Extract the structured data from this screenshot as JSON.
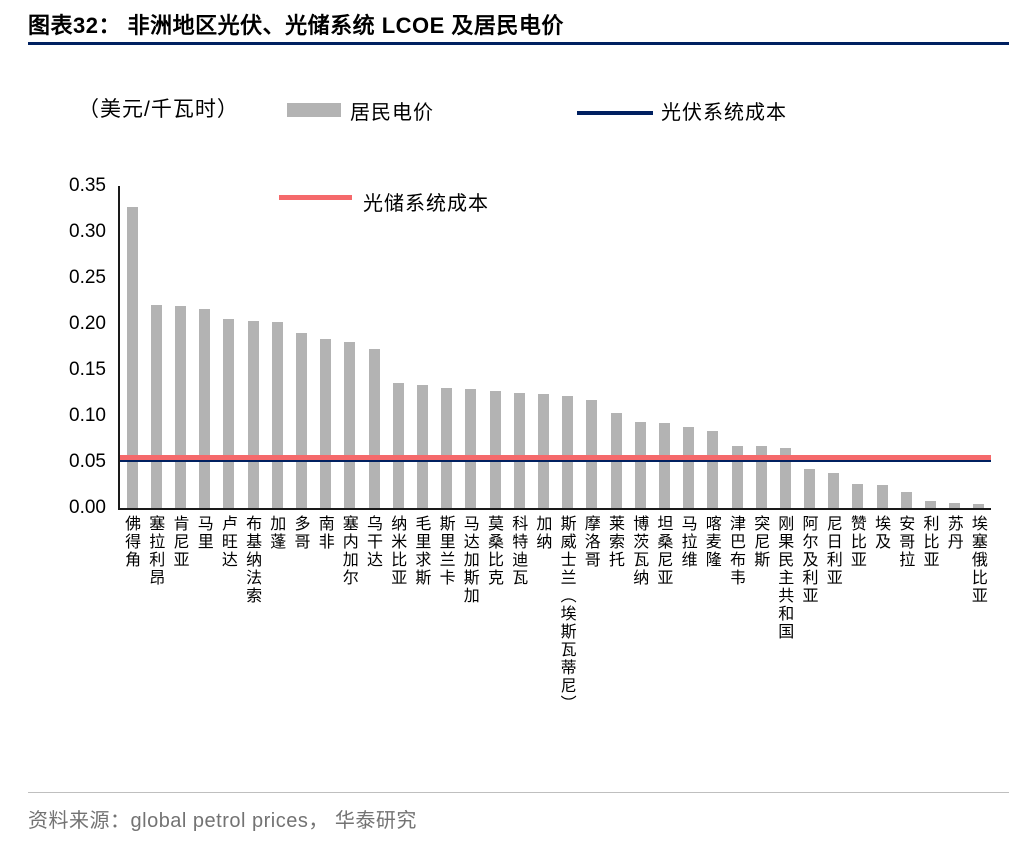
{
  "header": {
    "title": "图表32： 非洲地区光伏、光储系统 LCOE 及居民电价"
  },
  "theme": {
    "accent_navy": "#002060",
    "accent_red": "#f5696b",
    "bar_gray": "#b3b3b3"
  },
  "legend": {
    "unit": "（美元/千瓦时）",
    "items": [
      {
        "label": "居民电价",
        "marker": "bar",
        "color": "#b3b3b3"
      },
      {
        "label": "光伏系统成本",
        "marker": "line",
        "color": "#002060"
      },
      {
        "label": "光储系统成本",
        "marker": "line",
        "color": "#f5696b"
      }
    ]
  },
  "chart_data": {
    "type": "bar",
    "title": "非洲地区光伏、光储系统 LCOE 及居民电价",
    "unit": "美元/千瓦时",
    "xlabel": "",
    "ylabel": "（美元/千瓦时）",
    "ylim": [
      0,
      0.35
    ],
    "yticks": [
      0,
      0.05,
      0.1,
      0.15,
      0.2,
      0.25,
      0.3,
      0.35
    ],
    "grid": false,
    "legend_position": "top",
    "bar_color": "#b3b3b3",
    "series_name": "居民电价",
    "categories": [
      "佛得角",
      "塞拉利昂",
      "肯尼亚",
      "马里",
      "卢旺达",
      "布基纳法索",
      "加蓬",
      "多哥",
      "南非",
      "塞内加尔",
      "乌干达",
      "纳米比亚",
      "毛里求斯",
      "斯里兰卡",
      "马达加斯加",
      "莫桑比克",
      "科特迪瓦",
      "加纳",
      "斯威士兰（埃斯瓦蒂尼）",
      "摩洛哥",
      "莱索托",
      "博茨瓦纳",
      "坦桑尼亚",
      "马拉维",
      "喀麦隆",
      "津巴布韦",
      "突尼斯",
      "刚果民主共和国",
      "阿尔及利亚",
      "尼日利亚",
      "赞比亚",
      "埃及",
      "安哥拉",
      "利比亚",
      "苏丹",
      "埃塞俄比亚"
    ],
    "values": [
      0.327,
      0.221,
      0.22,
      0.216,
      0.206,
      0.203,
      0.202,
      0.19,
      0.184,
      0.18,
      0.173,
      0.136,
      0.134,
      0.131,
      0.129,
      0.127,
      0.125,
      0.124,
      0.122,
      0.117,
      0.103,
      0.094,
      0.092,
      0.088,
      0.084,
      0.067,
      0.067,
      0.065,
      0.042,
      0.038,
      0.026,
      0.025,
      0.017,
      0.008,
      0.006,
      0.004
    ],
    "lines": [
      {
        "name": "光伏系统成本",
        "value": 0.051,
        "color": "#002060"
      },
      {
        "name": "光储系统成本",
        "value": 0.055,
        "color": "#f5696b"
      }
    ]
  },
  "footer": {
    "source": "资料来源：global petrol prices， 华泰研究"
  }
}
